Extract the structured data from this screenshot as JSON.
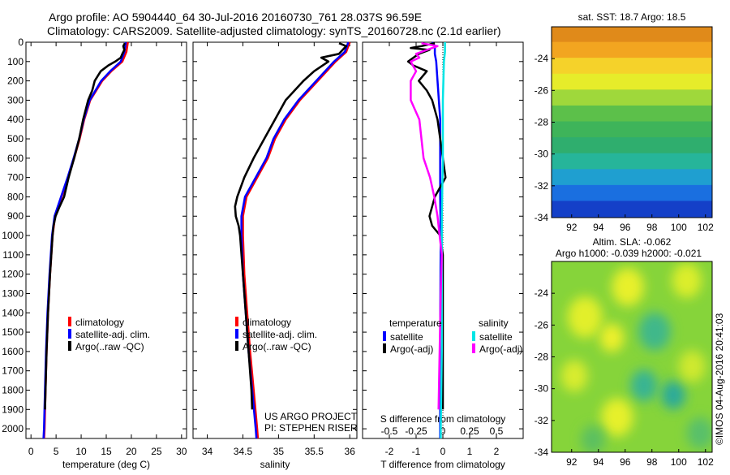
{
  "header": {
    "title_line1": "Argo profile: AO 5904440_64 30-Jul-2016 20160730_761 28.037S 96.59E",
    "title_line2": "Climatology: CARS2009. Satellite-adjusted climatology: synTS_20160728.nc (2.1d earlier)"
  },
  "credits": {
    "line1": "US ARGO PROJECT",
    "line2": "PI: STEPHEN RISER"
  },
  "watermark": "©IMOS 04-Aug-2016 20:41:03",
  "colors": {
    "climatology": "#ff0000",
    "satellite_adj": "#0000ff",
    "argo": "#000000",
    "salinity_sat": "#00e5e5",
    "salinity_argo": "#ff00ff"
  },
  "chart_data": [
    {
      "id": "temperature",
      "type": "line",
      "xlabel": "temperature (deg C)",
      "ylabel": "",
      "xlim": [
        -1,
        31
      ],
      "ylim": [
        2050,
        0
      ],
      "xticks": [
        0,
        5,
        10,
        15,
        20,
        25,
        30
      ],
      "yticks": [
        0,
        100,
        200,
        300,
        400,
        500,
        600,
        700,
        800,
        900,
        1000,
        1100,
        1200,
        1300,
        1400,
        1500,
        1600,
        1700,
        1800,
        1900,
        2000
      ],
      "legend": [
        "climatology",
        "satellite-adj. clim.",
        "Argo(..raw -QC)"
      ],
      "legend_position": "lower-center",
      "series": [
        {
          "name": "climatology",
          "color": "#ff0000",
          "depth": [
            0,
            50,
            100,
            150,
            200,
            300,
            400,
            500,
            600,
            700,
            800,
            900,
            1000,
            1200,
            1400,
            1600,
            1800,
            2000,
            2050
          ],
          "values": [
            19.3,
            19.0,
            18.2,
            16.0,
            14.2,
            11.8,
            10.6,
            9.7,
            8.6,
            7.4,
            6.1,
            4.8,
            4.3,
            3.8,
            3.4,
            3.1,
            2.9,
            2.7,
            2.6
          ]
        },
        {
          "name": "satellite-adj. clim.",
          "color": "#0000ff",
          "depth": [
            0,
            50,
            100,
            150,
            200,
            300,
            400,
            500,
            600,
            700,
            800,
            900,
            1000,
            1200,
            1400,
            1600,
            1800,
            2000,
            2050
          ],
          "values": [
            18.9,
            18.6,
            17.9,
            15.8,
            14.0,
            11.7,
            10.5,
            9.6,
            8.5,
            7.3,
            6.0,
            4.7,
            4.2,
            3.7,
            3.3,
            3.0,
            2.8,
            2.6,
            2.5
          ]
        },
        {
          "name": "Argo(..raw -QC)",
          "color": "#000000",
          "depth": [
            5,
            20,
            40,
            60,
            80,
            100,
            120,
            150,
            200,
            250,
            300,
            400,
            500,
            600,
            700,
            800,
            850,
            900,
            950,
            1000,
            1200,
            1400,
            1600,
            1800,
            1900
          ],
          "values": [
            18.7,
            18.4,
            18.6,
            18.2,
            17.9,
            16.8,
            15.4,
            13.9,
            12.7,
            12.2,
            11.4,
            10.4,
            9.6,
            8.6,
            7.5,
            6.6,
            5.7,
            4.9,
            4.5,
            4.3,
            3.8,
            3.4,
            3.1,
            2.9,
            2.8
          ]
        }
      ]
    },
    {
      "id": "salinity",
      "type": "line",
      "xlabel": "salinity",
      "ylabel": "",
      "xlim": [
        33.8,
        36.1
      ],
      "ylim": [
        2050,
        0
      ],
      "xticks": [
        34,
        34.5,
        35,
        35.5,
        36
      ],
      "legend": [
        "climatology",
        "satellite-adj. clim.",
        "Argo(..raw -QC)"
      ],
      "legend_position": "lower-center",
      "series": [
        {
          "name": "climatology",
          "color": "#ff0000",
          "depth": [
            0,
            50,
            100,
            200,
            300,
            400,
            500,
            600,
            700,
            800,
            900,
            1000,
            1200,
            1400,
            1600,
            1800,
            2000,
            2050
          ],
          "values": [
            36.0,
            35.95,
            35.8,
            35.55,
            35.3,
            35.1,
            34.95,
            34.85,
            34.7,
            34.55,
            34.5,
            34.5,
            34.52,
            34.56,
            34.6,
            34.65,
            34.7,
            34.71
          ]
        },
        {
          "name": "satellite-adj. clim.",
          "color": "#0000ff",
          "depth": [
            0,
            50,
            100,
            200,
            300,
            400,
            500,
            600,
            700,
            800,
            900,
            1000,
            1200,
            1400,
            1600,
            1800,
            2000,
            2050
          ],
          "values": [
            35.98,
            35.93,
            35.78,
            35.53,
            35.28,
            35.08,
            34.93,
            34.83,
            34.68,
            34.53,
            34.48,
            34.48,
            34.5,
            34.54,
            34.58,
            34.63,
            34.68,
            34.69
          ]
        },
        {
          "name": "Argo(..raw -QC)",
          "color": "#000000",
          "depth": [
            5,
            20,
            40,
            60,
            80,
            100,
            150,
            200,
            300,
            400,
            500,
            600,
            700,
            800,
            850,
            900,
            950,
            1000,
            1200,
            1400,
            1600,
            1800,
            1900
          ],
          "values": [
            35.85,
            35.95,
            35.9,
            35.85,
            35.6,
            35.7,
            35.5,
            35.35,
            35.1,
            34.95,
            34.8,
            34.65,
            34.52,
            34.42,
            34.39,
            34.4,
            34.44,
            34.46,
            34.5,
            34.54,
            34.58,
            34.62,
            34.63
          ]
        }
      ]
    },
    {
      "id": "difference",
      "type": "line",
      "xlabel": "T difference from climatology",
      "x2label": "S difference from climatology",
      "ylabel": "",
      "xlim": [
        -3,
        3
      ],
      "ylim": [
        2050,
        0
      ],
      "xticks": [
        -2,
        -1,
        0,
        1,
        2
      ],
      "x2ticks": [
        -0.5,
        -0.25,
        0,
        0.25,
        0.5
      ],
      "x2ticklabels": [
        "-0.5",
        "-0.25",
        "0",
        "0.25",
        "0.5"
      ],
      "x2_scale": 4,
      "legend_groups": [
        {
          "title": "temperature",
          "entries": [
            "satellite",
            "Argo(-adj)"
          ]
        },
        {
          "title": "salinity",
          "entries": [
            "satellite",
            "Argo(-adj)"
          ]
        }
      ],
      "legend_position": "lower-center",
      "series": [
        {
          "name": "temperature satellite",
          "color": "#0000ff",
          "depth": [
            0,
            20,
            60,
            100,
            200,
            400,
            600,
            800,
            1000,
            1500,
            2000,
            2050
          ],
          "values": [
            -0.4,
            -0.3,
            -0.3,
            -0.25,
            -0.2,
            -0.1,
            -0.1,
            -0.1,
            -0.08,
            -0.1,
            -0.1,
            -0.1
          ]
        },
        {
          "name": "temperature Argo(-adj)",
          "color": "#000000",
          "depth": [
            5,
            20,
            30,
            40,
            60,
            80,
            100,
            120,
            150,
            200,
            250,
            300,
            400,
            500,
            600,
            700,
            800,
            850,
            900,
            950,
            1000,
            1100,
            1500,
            1900
          ],
          "values": [
            -0.3,
            -0.8,
            -1.2,
            -0.5,
            -0.9,
            -1.1,
            -1.3,
            -1.1,
            -0.6,
            -0.9,
            -0.6,
            -0.4,
            -0.2,
            -0.1,
            0.0,
            0.1,
            -0.3,
            -0.4,
            -0.5,
            -0.4,
            -0.1,
            0.0,
            0.0,
            0.0
          ]
        },
        {
          "name": "salinity satellite",
          "color": "#00e5e5",
          "depth": [
            0,
            50,
            100,
            300,
            600,
            900,
            1200,
            1600,
            2000,
            2050
          ],
          "values": [
            0.02,
            0.02,
            0.01,
            0.0,
            0.0,
            -0.01,
            -0.01,
            -0.01,
            -0.02,
            -0.02
          ]
        },
        {
          "name": "salinity Argo(-adj)",
          "color": "#ff00ff",
          "depth": [
            5,
            20,
            40,
            60,
            80,
            100,
            150,
            200,
            300,
            400,
            500,
            600,
            700,
            800,
            900,
            1000,
            1100,
            1300,
            1600,
            1900
          ],
          "values": [
            -0.2,
            -0.05,
            -0.15,
            -0.25,
            -0.22,
            -0.3,
            -0.25,
            -0.3,
            -0.3,
            -0.22,
            -0.2,
            -0.18,
            -0.12,
            -0.08,
            -0.05,
            -0.03,
            -0.01,
            -0.02,
            -0.03,
            -0.04
          ]
        }
      ]
    },
    {
      "id": "sst_map",
      "type": "heatmap",
      "title": "sat. SST: 18.7 Argo: 18.5",
      "xlim": [
        90.5,
        102.5
      ],
      "ylim": [
        -34,
        -22
      ],
      "xticks": [
        92,
        94,
        96,
        98,
        100,
        102
      ],
      "yticks": [
        -24,
        -26,
        -28,
        -30,
        -32,
        -34
      ],
      "bands": [
        {
          "lat": -22.5,
          "color": "#e08a1a"
        },
        {
          "lat": -23.5,
          "color": "#f2a520"
        },
        {
          "lat": -24.5,
          "color": "#f5d22a"
        },
        {
          "lat": -25.5,
          "color": "#e6ec2a"
        },
        {
          "lat": -26.5,
          "color": "#9fd83b"
        },
        {
          "lat": -27.5,
          "color": "#5cc04a"
        },
        {
          "lat": -28.5,
          "color": "#3eb45a"
        },
        {
          "lat": -29.5,
          "color": "#2fae6e"
        },
        {
          "lat": -30.5,
          "color": "#26b59a"
        },
        {
          "lat": -31.5,
          "color": "#1f9fd0"
        },
        {
          "lat": -32.5,
          "color": "#1a6fe0"
        },
        {
          "lat": -33.5,
          "color": "#1440c8"
        }
      ]
    },
    {
      "id": "sla_map",
      "type": "heatmap",
      "title": "Altim. SLA: -0.062",
      "subtitle": "Argo h1000: -0.039 h2000: -0.021",
      "xlim": [
        90.5,
        102.5
      ],
      "ylim": [
        -34,
        -22
      ],
      "xticks": [
        92,
        94,
        96,
        98,
        100,
        102
      ],
      "yticks": [
        -24,
        -26,
        -28,
        -30,
        -32,
        -34
      ],
      "background_color": "#86d43a",
      "blobs": [
        {
          "lon": 93.0,
          "lat": -25.5,
          "r": 1.3,
          "color": "#e2ef2a"
        },
        {
          "lon": 96.2,
          "lat": -23.6,
          "r": 1.2,
          "color": "#e8f02a"
        },
        {
          "lon": 95.0,
          "lat": -26.8,
          "r": 0.9,
          "color": "#edf02c"
        },
        {
          "lon": 100.6,
          "lat": -23.2,
          "r": 1.1,
          "color": "#dcee2c"
        },
        {
          "lon": 98.2,
          "lat": -26.4,
          "r": 1.2,
          "color": "#3fb88a"
        },
        {
          "lon": 97.4,
          "lat": -29.8,
          "r": 1.0,
          "color": "#37b493"
        },
        {
          "lon": 99.6,
          "lat": -30.4,
          "r": 0.9,
          "color": "#2caa9a"
        },
        {
          "lon": 92.2,
          "lat": -29.2,
          "r": 1.0,
          "color": "#d8ec2e"
        },
        {
          "lon": 95.4,
          "lat": -31.8,
          "r": 1.2,
          "color": "#e6f02a"
        },
        {
          "lon": 101.0,
          "lat": -28.6,
          "r": 1.0,
          "color": "#cfe92e"
        },
        {
          "lon": 101.6,
          "lat": -32.8,
          "r": 1.0,
          "color": "#58c06a"
        },
        {
          "lon": 93.6,
          "lat": -33.2,
          "r": 0.9,
          "color": "#5cc060"
        }
      ]
    }
  ]
}
